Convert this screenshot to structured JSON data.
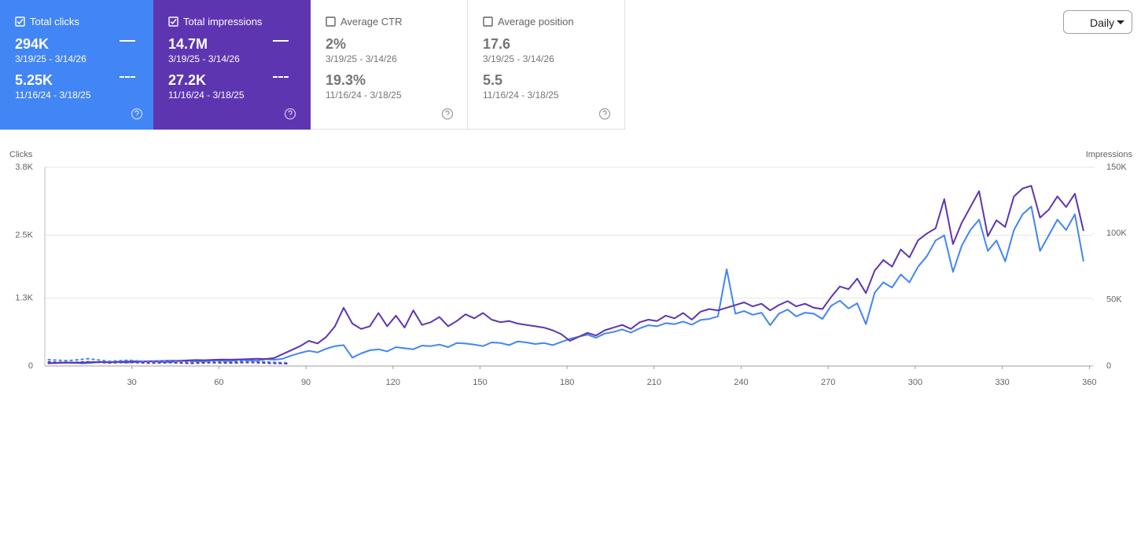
{
  "cards": [
    {
      "title": "Total clicks",
      "checked": true,
      "bg": "#4285f4",
      "line": "solid",
      "current": {
        "value": "294K",
        "range": "3/19/25 - 3/14/26"
      },
      "previous": {
        "value": "5.25K",
        "range": "11/16/24 - 3/18/25"
      }
    },
    {
      "title": "Total impressions",
      "checked": true,
      "bg": "#5e35b1",
      "line": "solid",
      "current": {
        "value": "14.7M",
        "range": "3/19/25 - 3/14/26"
      },
      "previous": {
        "value": "27.2K",
        "range": "11/16/24 - 3/18/25"
      }
    },
    {
      "title": "Average CTR",
      "checked": false,
      "bg": "#ffffff",
      "current": {
        "value": "2%",
        "range": "3/19/25 - 3/14/26"
      },
      "previous": {
        "value": "19.3%",
        "range": "11/16/24 - 3/18/25"
      }
    },
    {
      "title": "Average position",
      "checked": false,
      "bg": "#ffffff",
      "current": {
        "value": "17.6",
        "range": "3/19/25 - 3/14/26"
      },
      "previous": {
        "value": "5.5",
        "range": "11/16/24 - 3/18/25"
      }
    }
  ],
  "period_control": {
    "label": "Daily"
  },
  "chart_data": {
    "type": "line",
    "y_label": "Clicks",
    "y2_label": "Impressions",
    "grid": true,
    "xlim": [
      0,
      361
    ],
    "xticks": [
      30,
      60,
      90,
      120,
      150,
      180,
      210,
      240,
      270,
      300,
      330,
      360
    ],
    "ylim": [
      0,
      3800
    ],
    "yticks": [
      0,
      {
        "value": 1300,
        "label": "1.3K"
      },
      {
        "value": 2500,
        "label": "2.5K"
      },
      {
        "value": 3800,
        "label": "3.8K"
      }
    ],
    "y2lim": [
      0,
      150000
    ],
    "y2ticks": [
      0,
      {
        "value": 50000,
        "label": "50K"
      },
      {
        "value": 100000,
        "label": "100K"
      },
      {
        "value": 150000,
        "label": "150K"
      }
    ],
    "series": [
      {
        "color": "#4285f4",
        "axis": "y",
        "dashed": false,
        "x": [
          1,
          4,
          7,
          10,
          13,
          16,
          19,
          22,
          25,
          28,
          31,
          34,
          37,
          40,
          43,
          46,
          49,
          52,
          55,
          58,
          61,
          64,
          67,
          70,
          73,
          76,
          79,
          82,
          85,
          88,
          91,
          94,
          97,
          100,
          103,
          106,
          109,
          112,
          115,
          118,
          121,
          124,
          127,
          130,
          133,
          136,
          139,
          142,
          145,
          148,
          151,
          154,
          157,
          160,
          163,
          166,
          169,
          172,
          175,
          178,
          181,
          184,
          187,
          190,
          193,
          196,
          199,
          202,
          205,
          208,
          211,
          214,
          217,
          220,
          223,
          226,
          229,
          232,
          235,
          238,
          241,
          244,
          247,
          250,
          253,
          256,
          259,
          262,
          265,
          268,
          271,
          274,
          277,
          280,
          283,
          286,
          289,
          292,
          295,
          298,
          301,
          304,
          307,
          310,
          313,
          316,
          319,
          322,
          325,
          328,
          331,
          334,
          337,
          340,
          343,
          346,
          349,
          352,
          355,
          358
        ],
        "values": [
          60,
          55,
          70,
          65,
          50,
          60,
          75,
          70,
          80,
          65,
          75,
          85,
          90,
          80,
          70,
          95,
          100,
          90,
          85,
          110,
          100,
          95,
          120,
          110,
          100,
          130,
          120,
          140,
          200,
          250,
          290,
          260,
          330,
          380,
          400,
          160,
          240,
          300,
          320,
          280,
          360,
          340,
          320,
          390,
          380,
          410,
          360,
          440,
          430,
          410,
          380,
          450,
          440,
          400,
          470,
          450,
          420,
          440,
          400,
          460,
          520,
          560,
          600,
          540,
          620,
          650,
          700,
          640,
          720,
          780,
          760,
          820,
          800,
          850,
          790,
          880,
          900,
          950,
          1850,
          1000,
          1050,
          980,
          1020,
          780,
          1000,
          1080,
          950,
          1020,
          1000,
          900,
          1150,
          1250,
          1100,
          1200,
          800,
          1400,
          1600,
          1500,
          1750,
          1600,
          1900,
          2100,
          2400,
          2500,
          1800,
          2300,
          2600,
          2800,
          2200,
          2400,
          2000,
          2600,
          2900,
          3050,
          2200,
          2500,
          2800,
          2600,
          2900,
          2000
        ]
      },
      {
        "color": "#5e35b1",
        "axis": "y2",
        "dashed": false,
        "x": [
          1,
          4,
          7,
          10,
          13,
          16,
          19,
          22,
          25,
          28,
          31,
          34,
          37,
          40,
          43,
          46,
          49,
          52,
          55,
          58,
          61,
          64,
          67,
          70,
          73,
          76,
          79,
          82,
          85,
          88,
          91,
          94,
          97,
          100,
          103,
          106,
          109,
          112,
          115,
          118,
          121,
          124,
          127,
          130,
          133,
          136,
          139,
          142,
          145,
          148,
          151,
          154,
          157,
          160,
          163,
          166,
          169,
          172,
          175,
          178,
          181,
          184,
          187,
          190,
          193,
          196,
          199,
          202,
          205,
          208,
          211,
          214,
          217,
          220,
          223,
          226,
          229,
          232,
          235,
          238,
          241,
          244,
          247,
          250,
          253,
          256,
          259,
          262,
          265,
          268,
          271,
          274,
          277,
          280,
          283,
          286,
          289,
          292,
          295,
          298,
          301,
          304,
          307,
          310,
          313,
          316,
          319,
          322,
          325,
          328,
          331,
          334,
          337,
          340,
          343,
          346,
          349,
          352,
          355,
          358
        ],
        "values": [
          2000,
          2200,
          2500,
          2400,
          2600,
          2800,
          3000,
          2900,
          3100,
          3300,
          3500,
          3400,
          3600,
          3800,
          4000,
          3900,
          4200,
          4500,
          4400,
          4700,
          4900,
          4800,
          5000,
          5200,
          5500,
          5300,
          6000,
          9000,
          12000,
          15000,
          19000,
          17000,
          22000,
          30000,
          44000,
          32000,
          28000,
          30000,
          40000,
          30000,
          38000,
          29000,
          42000,
          31000,
          33000,
          37000,
          30000,
          34000,
          39000,
          36000,
          40000,
          35000,
          33000,
          34000,
          32000,
          31000,
          30000,
          29000,
          27000,
          24000,
          19000,
          22000,
          25000,
          23000,
          27000,
          29000,
          31000,
          28000,
          33000,
          35000,
          34000,
          38000,
          36000,
          40000,
          35000,
          41000,
          43000,
          42000,
          44000,
          46000,
          48000,
          45000,
          47000,
          42000,
          46000,
          49000,
          45000,
          47000,
          44000,
          43000,
          52000,
          60000,
          58000,
          66000,
          55000,
          72000,
          80000,
          75000,
          88000,
          82000,
          95000,
          100000,
          104000,
          126000,
          92000,
          108000,
          120000,
          132000,
          98000,
          110000,
          105000,
          128000,
          134000,
          136000,
          112000,
          118000,
          128000,
          120000,
          130000,
          102000
        ]
      },
      {
        "color": "#4285f4",
        "axis": "y",
        "dashed": true,
        "x": [
          1,
          8,
          15,
          22,
          29,
          36,
          43,
          50,
          57,
          64,
          71,
          78,
          84
        ],
        "values": [
          120,
          100,
          140,
          90,
          110,
          80,
          100,
          70,
          90,
          80,
          100,
          70,
          60
        ]
      },
      {
        "color": "#5e35b1",
        "axis": "y2",
        "dashed": true,
        "x": [
          1,
          8,
          15,
          22,
          29,
          36,
          43,
          50,
          57,
          64,
          71,
          78,
          84
        ],
        "values": [
          3000,
          2500,
          3200,
          2400,
          2800,
          2200,
          2600,
          2000,
          2500,
          2300,
          2700,
          2100,
          1800
        ]
      }
    ]
  }
}
